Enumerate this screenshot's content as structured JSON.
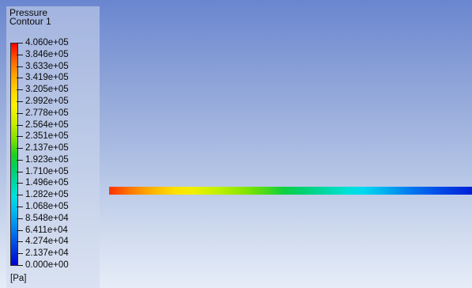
{
  "legend": {
    "title_line1": "Pressure",
    "title_line2": "Contour 1",
    "unit": "[Pa]",
    "tick_labels": [
      "4.060e+05",
      "3.846e+05",
      "3.633e+05",
      "3.419e+05",
      "3.205e+05",
      "2.992e+05",
      "2.778e+05",
      "2.564e+05",
      "2.351e+05",
      "2.137e+05",
      "1.923e+05",
      "1.710e+05",
      "1.496e+05",
      "1.282e+05",
      "1.068e+05",
      "8.548e+04",
      "6.411e+04",
      "4.274e+04",
      "2.137e+04",
      "0.000e+00"
    ],
    "colormap": [
      "#ff0000",
      "#ff8c00",
      "#ffe600",
      "#78e000",
      "#00d060",
      "#00e0e0",
      "#0080f0",
      "#0000d0"
    ]
  },
  "viewport": {
    "background_top": "#6a86cf",
    "background_bottom": "#e6edf8",
    "contour_colors_left_to_right": [
      "#ff3000",
      "#ffe000",
      "#00d070",
      "#00e0d8",
      "#0020d8"
    ]
  }
}
